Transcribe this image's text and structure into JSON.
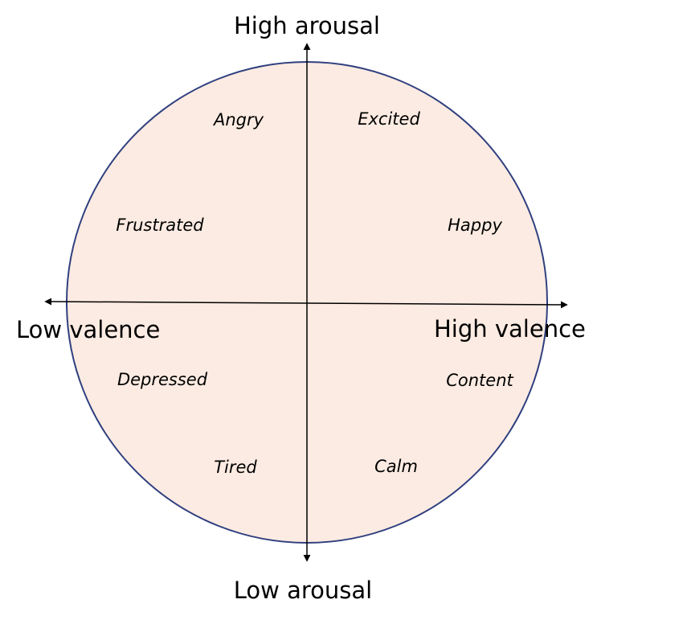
{
  "axes": {
    "top_label": "High arousal",
    "bottom_label": "Low arousal",
    "left_label": "Low valence",
    "right_label": "High valence"
  },
  "emotions": {
    "angry": "Angry",
    "excited": "Excited",
    "frustrated": "Frustrated",
    "happy": "Happy",
    "depressed": "Depressed",
    "content": "Content",
    "tired": "Tired",
    "calm": "Calm"
  },
  "colors": {
    "circle_fill": "#fcebe2",
    "circle_stroke": "#2f3f7f",
    "axis": "#000000",
    "text": "#000000"
  }
}
